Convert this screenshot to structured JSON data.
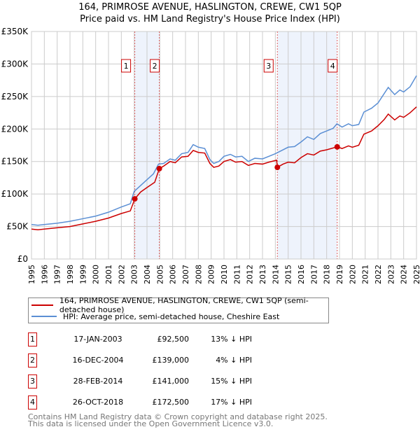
{
  "chart_data": {
    "type": "line",
    "title": "164, PRIMROSE AVENUE, HASLINGTON, CREWE, CW1 5QP",
    "subtitle": "Price paid vs. HM Land Registry's House Price Index (HPI)",
    "xlim": [
      1995,
      2025
    ],
    "ylim": [
      0,
      350000
    ],
    "y_ticks": [
      {
        "v": 0,
        "l": "£0"
      },
      {
        "v": 50000,
        "l": "£50K"
      },
      {
        "v": 100000,
        "l": "£100K"
      },
      {
        "v": 150000,
        "l": "£150K"
      },
      {
        "v": 200000,
        "l": "£200K"
      },
      {
        "v": 250000,
        "l": "£250K"
      },
      {
        "v": 300000,
        "l": "£300K"
      },
      {
        "v": 350000,
        "l": "£350K"
      }
    ],
    "x_ticks": [
      "1995",
      "1996",
      "1997",
      "1998",
      "1999",
      "2000",
      "2001",
      "2002",
      "2003",
      "2004",
      "2005",
      "2006",
      "2007",
      "2008",
      "2009",
      "2010",
      "2011",
      "2012",
      "2013",
      "2014",
      "2015",
      "2016",
      "2017",
      "2018",
      "2019",
      "2020",
      "2021",
      "2022",
      "2023",
      "2024",
      "2025"
    ],
    "grid": true,
    "series": [
      {
        "name": "164, PRIMROSE AVENUE, HASLINGTON, CREWE, CW1 5QP (semi-detached house)",
        "color": "#cc0000",
        "points": [
          [
            1995,
            46
          ],
          [
            1995.5,
            45
          ],
          [
            1996,
            46
          ],
          [
            1997,
            48
          ],
          [
            1998,
            50
          ],
          [
            1999,
            54
          ],
          [
            2000,
            58
          ],
          [
            2001,
            63
          ],
          [
            2002,
            70
          ],
          [
            2002.7,
            74
          ],
          [
            2003.05,
            92.5
          ],
          [
            2003.5,
            103
          ],
          [
            2004,
            110
          ],
          [
            2004.6,
            118
          ],
          [
            2004.96,
            139
          ],
          [
            2005.3,
            143
          ],
          [
            2005.8,
            150
          ],
          [
            2006.2,
            148
          ],
          [
            2006.7,
            157
          ],
          [
            2007.2,
            158
          ],
          [
            2007.6,
            167
          ],
          [
            2008,
            164
          ],
          [
            2008.5,
            163
          ],
          [
            2008.9,
            147
          ],
          [
            2009.2,
            141
          ],
          [
            2009.6,
            143
          ],
          [
            2010,
            150
          ],
          [
            2010.5,
            153
          ],
          [
            2010.9,
            149
          ],
          [
            2011.4,
            150
          ],
          [
            2011.9,
            144
          ],
          [
            2012.4,
            147
          ],
          [
            2013,
            146
          ],
          [
            2013.5,
            149
          ],
          [
            2014.1,
            152
          ],
          [
            2014.16,
            141
          ],
          [
            2014.6,
            146
          ],
          [
            2015,
            149
          ],
          [
            2015.5,
            148
          ],
          [
            2016,
            156
          ],
          [
            2016.5,
            162
          ],
          [
            2017,
            160
          ],
          [
            2017.5,
            166
          ],
          [
            2018,
            168
          ],
          [
            2018.82,
            172.5
          ],
          [
            2019.2,
            170
          ],
          [
            2019.7,
            174
          ],
          [
            2020,
            172
          ],
          [
            2020.5,
            175
          ],
          [
            2020.9,
            192
          ],
          [
            2021.5,
            197
          ],
          [
            2022,
            205
          ],
          [
            2022.5,
            215
          ],
          [
            2022.8,
            223
          ],
          [
            2023.3,
            214
          ],
          [
            2023.7,
            220
          ],
          [
            2024,
            218
          ],
          [
            2024.5,
            225
          ],
          [
            2025,
            234
          ]
        ]
      },
      {
        "name": "HPI: Average price, semi-detached house, Cheshire East",
        "color": "#5b8fd4",
        "points": [
          [
            1995,
            53
          ],
          [
            1995.5,
            52
          ],
          [
            1996,
            53
          ],
          [
            1997,
            55
          ],
          [
            1998,
            58
          ],
          [
            1999,
            62
          ],
          [
            2000,
            66
          ],
          [
            2001,
            72
          ],
          [
            2002,
            80
          ],
          [
            2002.7,
            85
          ],
          [
            2003,
            104
          ],
          [
            2003.5,
            113
          ],
          [
            2004,
            122
          ],
          [
            2004.5,
            131
          ],
          [
            2004.9,
            146
          ],
          [
            2005.3,
            147
          ],
          [
            2005.8,
            154
          ],
          [
            2006.2,
            152
          ],
          [
            2006.7,
            162
          ],
          [
            2007.2,
            164
          ],
          [
            2007.6,
            176
          ],
          [
            2008,
            172
          ],
          [
            2008.5,
            170
          ],
          [
            2008.9,
            153
          ],
          [
            2009.2,
            147
          ],
          [
            2009.6,
            150
          ],
          [
            2010,
            158
          ],
          [
            2010.5,
            161
          ],
          [
            2010.9,
            157
          ],
          [
            2011.4,
            158
          ],
          [
            2011.9,
            150
          ],
          [
            2012.4,
            155
          ],
          [
            2013,
            154
          ],
          [
            2013.5,
            158
          ],
          [
            2014,
            162
          ],
          [
            2014.5,
            167
          ],
          [
            2015,
            172
          ],
          [
            2015.5,
            173
          ],
          [
            2016,
            180
          ],
          [
            2016.5,
            188
          ],
          [
            2017,
            184
          ],
          [
            2017.5,
            193
          ],
          [
            2018,
            197
          ],
          [
            2018.5,
            201
          ],
          [
            2018.8,
            208
          ],
          [
            2019.2,
            203
          ],
          [
            2019.7,
            208
          ],
          [
            2020,
            205
          ],
          [
            2020.5,
            207
          ],
          [
            2020.9,
            226
          ],
          [
            2021.5,
            232
          ],
          [
            2022,
            240
          ],
          [
            2022.5,
            255
          ],
          [
            2022.8,
            264
          ],
          [
            2023.3,
            253
          ],
          [
            2023.7,
            260
          ],
          [
            2024,
            257
          ],
          [
            2024.5,
            265
          ],
          [
            2025,
            282
          ]
        ]
      }
    ],
    "sales": [
      {
        "n": "1",
        "x": 2003.05,
        "v": 92.5,
        "date": "17-JAN-2003",
        "price": "£92,500",
        "hpi": "13% ↓ HPI"
      },
      {
        "n": "2",
        "x": 2004.96,
        "v": 139,
        "date": "16-DEC-2004",
        "price": "£139,000",
        "hpi": "4% ↓ HPI"
      },
      {
        "n": "3",
        "x": 2014.16,
        "v": 141,
        "date": "28-FEB-2014",
        "price": "£141,000",
        "hpi": "15% ↓ HPI"
      },
      {
        "n": "4",
        "x": 2018.82,
        "v": 172.5,
        "date": "26-OCT-2018",
        "price": "£172,500",
        "hpi": "17% ↓ HPI"
      }
    ],
    "shaded_ranges": [
      [
        2003.05,
        2004.96
      ],
      [
        2014.16,
        2018.82
      ]
    ]
  },
  "footer": {
    "line1": "Contains HM Land Registry data © Crown copyright and database right 2025.",
    "line2": "This data is licensed under the Open Government Licence v3.0."
  }
}
